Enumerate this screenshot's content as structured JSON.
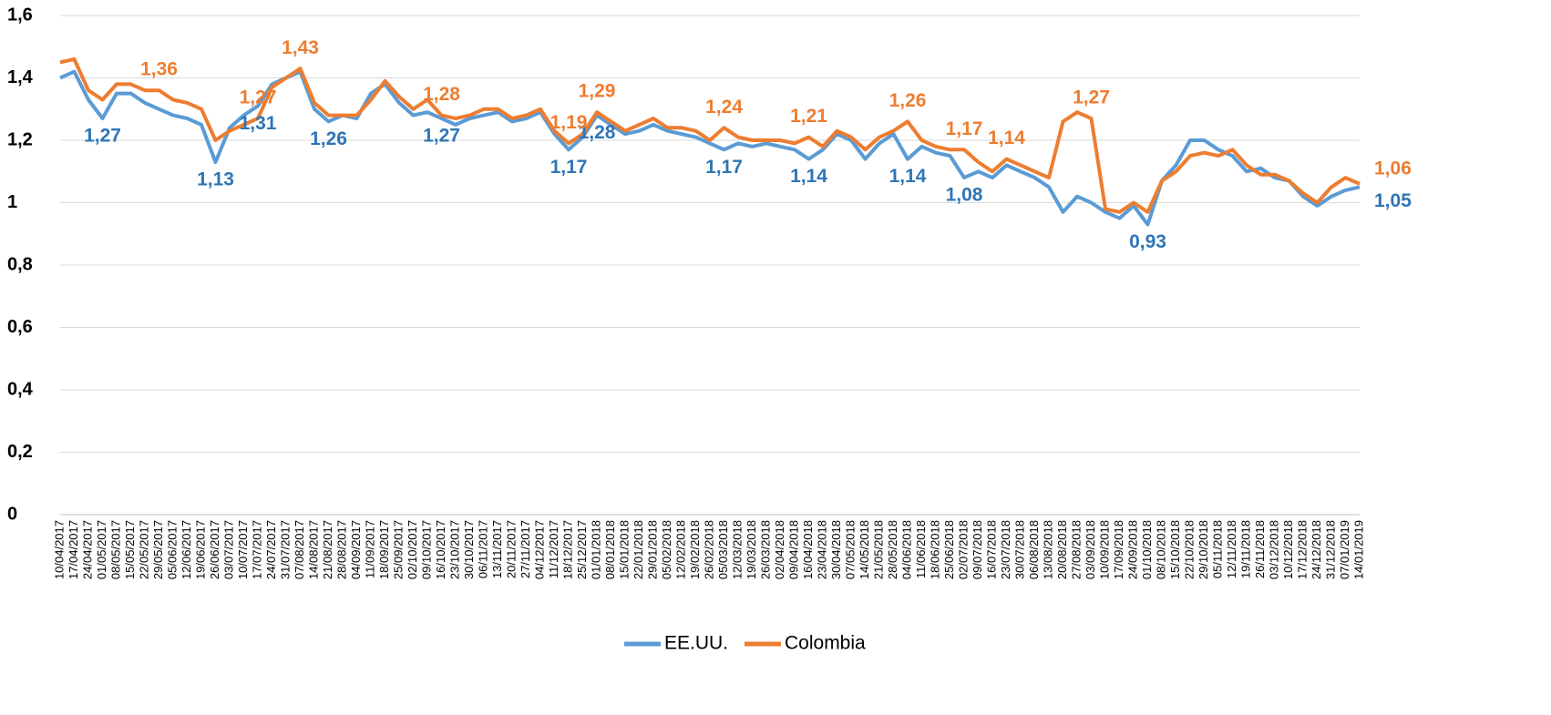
{
  "chart_data": {
    "type": "line",
    "categories": [
      "10/04/2017",
      "17/04/2017",
      "24/04/2017",
      "01/05/2017",
      "08/05/2017",
      "15/05/2017",
      "22/05/2017",
      "29/05/2017",
      "05/06/2017",
      "12/06/2017",
      "19/06/2017",
      "26/06/2017",
      "03/07/2017",
      "10/07/2017",
      "17/07/2017",
      "24/07/2017",
      "31/07/2017",
      "07/08/2017",
      "14/08/2017",
      "21/08/2017",
      "28/08/2017",
      "04/09/2017",
      "11/09/2017",
      "18/09/2017",
      "25/09/2017",
      "02/10/2017",
      "09/10/2017",
      "16/10/2017",
      "23/10/2017",
      "30/10/2017",
      "06/11/2017",
      "13/11/2017",
      "20/11/2017",
      "27/11/2017",
      "04/12/2017",
      "11/12/2017",
      "18/12/2017",
      "25/12/2017",
      "01/01/2018",
      "08/01/2018",
      "15/01/2018",
      "22/01/2018",
      "29/01/2018",
      "05/02/2018",
      "12/02/2018",
      "19/02/2018",
      "26/02/2018",
      "05/03/2018",
      "12/03/2018",
      "19/03/2018",
      "26/03/2018",
      "02/04/2018",
      "09/04/2018",
      "16/04/2018",
      "23/04/2018",
      "30/04/2018",
      "07/05/2018",
      "14/05/2018",
      "21/05/2018",
      "28/05/2018",
      "04/06/2018",
      "11/06/2018",
      "18/06/2018",
      "25/06/2018",
      "02/07/2018",
      "09/07/2018",
      "16/07/2018",
      "23/07/2018",
      "30/07/2018",
      "06/08/2018",
      "13/08/2018",
      "20/08/2018",
      "27/08/2018",
      "03/09/2018",
      "10/09/2018",
      "17/09/2018",
      "24/09/2018",
      "01/10/2018",
      "08/10/2018",
      "15/10/2018",
      "22/10/2018",
      "29/10/2018",
      "05/11/2018",
      "12/11/2018",
      "19/11/2018",
      "26/11/2018",
      "03/12/2018",
      "10/12/2018",
      "17/12/2018",
      "24/12/2018",
      "31/12/2018",
      "07/01/2019",
      "14/01/2019"
    ],
    "series": [
      {
        "name": "EE.UU.",
        "color": "#5b9bd5",
        "label_color": "#2e75b6",
        "values": [
          1.4,
          1.42,
          1.33,
          1.27,
          1.35,
          1.35,
          1.32,
          1.3,
          1.28,
          1.27,
          1.25,
          1.13,
          1.24,
          1.28,
          1.31,
          1.38,
          1.4,
          1.42,
          1.3,
          1.26,
          1.28,
          1.27,
          1.35,
          1.38,
          1.32,
          1.28,
          1.29,
          1.27,
          1.25,
          1.27,
          1.28,
          1.29,
          1.26,
          1.27,
          1.29,
          1.22,
          1.17,
          1.21,
          1.28,
          1.25,
          1.22,
          1.23,
          1.25,
          1.23,
          1.22,
          1.21,
          1.19,
          1.17,
          1.19,
          1.18,
          1.19,
          1.18,
          1.17,
          1.14,
          1.17,
          1.22,
          1.2,
          1.14,
          1.19,
          1.22,
          1.14,
          1.18,
          1.16,
          1.15,
          1.08,
          1.1,
          1.08,
          1.12,
          1.1,
          1.08,
          1.05,
          0.97,
          1.02,
          1.0,
          0.97,
          0.95,
          0.99,
          0.93,
          1.07,
          1.12,
          1.2,
          1.2,
          1.17,
          1.15,
          1.1,
          1.11,
          1.08,
          1.07,
          1.02,
          0.99,
          1.02,
          1.04,
          1.05
        ],
        "value_labels": [
          null,
          null,
          null,
          "1,27",
          null,
          null,
          null,
          null,
          null,
          null,
          null,
          "1,13",
          null,
          null,
          "1,31",
          null,
          null,
          null,
          null,
          "1,26",
          null,
          null,
          null,
          null,
          null,
          null,
          null,
          "1,27",
          null,
          null,
          null,
          null,
          null,
          null,
          null,
          null,
          "1,17",
          null,
          "1,28",
          null,
          null,
          null,
          null,
          null,
          null,
          null,
          null,
          "1,17",
          null,
          null,
          null,
          null,
          null,
          "1,14",
          null,
          null,
          null,
          null,
          null,
          null,
          "1,14",
          null,
          null,
          null,
          "1,08",
          null,
          null,
          null,
          null,
          null,
          null,
          null,
          null,
          null,
          null,
          null,
          null,
          "0,93",
          null,
          null,
          null,
          null,
          null,
          null,
          null,
          null,
          null,
          null,
          null,
          null,
          null,
          null,
          "1,05"
        ]
      },
      {
        "name": "Colombia",
        "color": "#ed7d31",
        "label_color": "#ed7d31",
        "values": [
          1.45,
          1.46,
          1.36,
          1.33,
          1.38,
          1.38,
          1.36,
          1.36,
          1.33,
          1.32,
          1.3,
          1.2,
          1.23,
          1.25,
          1.27,
          1.37,
          1.4,
          1.43,
          1.32,
          1.28,
          1.28,
          1.28,
          1.33,
          1.39,
          1.34,
          1.3,
          1.33,
          1.28,
          1.27,
          1.28,
          1.3,
          1.3,
          1.27,
          1.28,
          1.3,
          1.23,
          1.19,
          1.22,
          1.29,
          1.26,
          1.23,
          1.25,
          1.27,
          1.24,
          1.24,
          1.23,
          1.2,
          1.24,
          1.21,
          1.2,
          1.2,
          1.2,
          1.19,
          1.21,
          1.18,
          1.23,
          1.21,
          1.17,
          1.21,
          1.23,
          1.26,
          1.2,
          1.18,
          1.17,
          1.17,
          1.13,
          1.1,
          1.14,
          1.12,
          1.1,
          1.08,
          1.26,
          1.29,
          1.27,
          0.98,
          0.97,
          1.0,
          0.97,
          1.07,
          1.1,
          1.15,
          1.16,
          1.15,
          1.17,
          1.12,
          1.09,
          1.09,
          1.07,
          1.03,
          1.0,
          1.05,
          1.08,
          1.06
        ],
        "value_labels": [
          null,
          null,
          null,
          null,
          null,
          null,
          null,
          "1,36",
          null,
          null,
          null,
          null,
          null,
          null,
          "1,27",
          null,
          null,
          "1,43",
          null,
          null,
          null,
          null,
          null,
          null,
          null,
          null,
          null,
          "1,28",
          null,
          null,
          null,
          null,
          null,
          null,
          null,
          null,
          "1,19",
          null,
          "1,29",
          null,
          null,
          null,
          null,
          null,
          null,
          null,
          null,
          "1,24",
          null,
          null,
          null,
          null,
          null,
          "1,21",
          null,
          null,
          null,
          null,
          null,
          null,
          "1,26",
          null,
          null,
          null,
          "1,17",
          null,
          null,
          "1,14",
          null,
          null,
          null,
          null,
          null,
          "1,27",
          null,
          null,
          null,
          null,
          null,
          null,
          null,
          null,
          null,
          null,
          null,
          null,
          null,
          null,
          null,
          null,
          null,
          null,
          "1,06"
        ]
      }
    ],
    "ylim": [
      0,
      1.6
    ],
    "yticks": [
      0,
      {
        "value": 0.2,
        "label": "0,2"
      },
      {
        "value": 0.4,
        "label": "0,4"
      },
      {
        "value": 0.6,
        "label": "0,6"
      },
      {
        "value": 0.8,
        "label": "0,8"
      },
      1,
      {
        "value": 1.2,
        "label": "1,2"
      },
      {
        "value": 1.4,
        "label": "1,4"
      },
      {
        "value": 1.6,
        "label": "1,6"
      }
    ],
    "grid": true,
    "legend": "bottom"
  }
}
